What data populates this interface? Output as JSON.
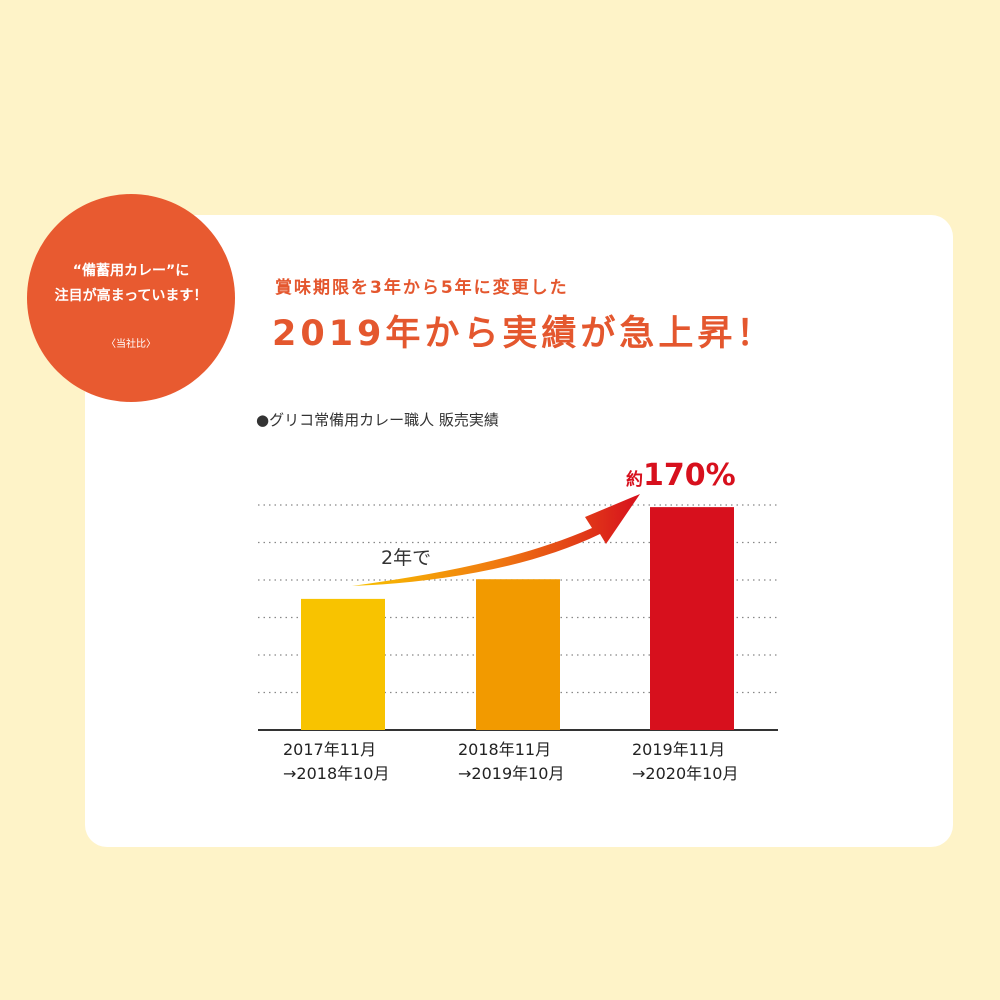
{
  "badge": {
    "line1": "“備蓄用カレー”に",
    "line2": "注目が高まっています！",
    "line3": "〈当社比〉",
    "color": "#e85a30"
  },
  "subtitle": "賞味期限を3年から5年に変更した",
  "headline": "2019年から実績が急上昇！",
  "chart_data": {
    "type": "bar",
    "title": "●グリコ常備用カレー職人 販売実績",
    "categories": [
      [
        "2017年11月",
        "→2018年10月"
      ],
      [
        "2018年11月",
        "→2019年10月"
      ],
      [
        "2019年11月",
        "→2020年10月"
      ]
    ],
    "values": [
      100,
      115,
      170
    ],
    "colors": [
      "#f8c300",
      "#f29a00",
      "#d7101d"
    ],
    "ylim": [
      0,
      180
    ],
    "grid": true,
    "annotations": {
      "arrow_label": "2年で",
      "value_prefix": "約",
      "value_label": "170%"
    }
  }
}
